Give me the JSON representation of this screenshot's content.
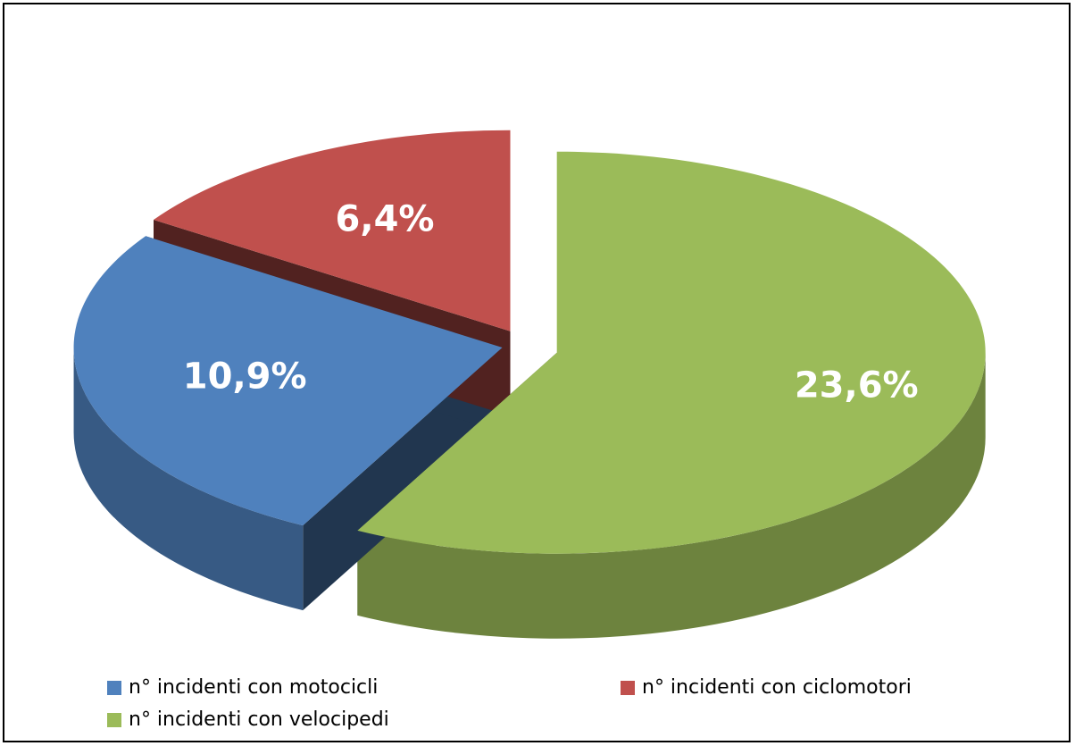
{
  "chart_data": {
    "type": "pie3d",
    "categories": [
      "n° incidenti con motocicli",
      "n° incidenti con ciclomotori",
      "n° incidenti con velocipedi"
    ],
    "values": [
      10.9,
      6.4,
      23.6
    ],
    "value_labels": [
      "10,9%",
      "6,4%",
      "23,6%"
    ],
    "colors": [
      "#4f81bd",
      "#c0504d",
      "#9bbb59"
    ],
    "legend": "bottom"
  }
}
